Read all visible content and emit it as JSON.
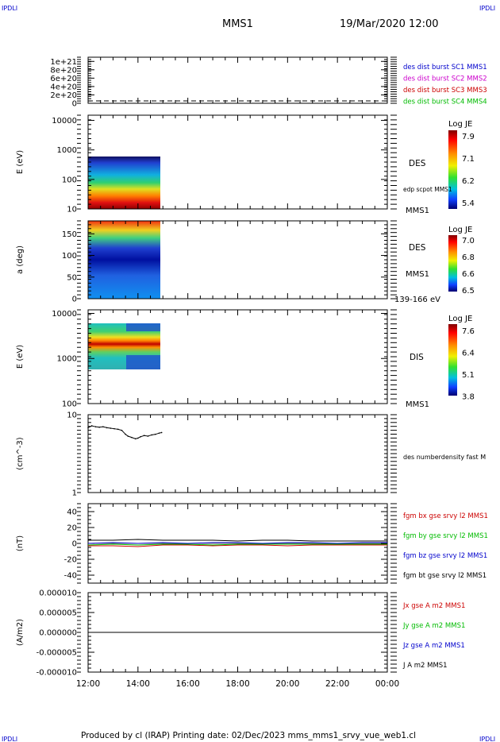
{
  "header": {
    "corner_tl": "IPDLI",
    "corner_tr": "IPDLI",
    "corner_bl": "IPDLI",
    "corner_br": "IPDLI",
    "title": "MMS1",
    "date": "19/Mar/2020 12:00"
  },
  "footer": {
    "text": "Produced by cl (IRAP)   Printing date: 02/Dec/2023   mms_mms1_srvy_vue_web1.cl"
  },
  "colors": {
    "blue": "#0000cc",
    "magenta": "#cc00cc",
    "red": "#cc0000",
    "green": "#00bb00",
    "black": "#000000"
  },
  "chart_data": [
    {
      "type": "line",
      "panel": "distribution counts",
      "ylabel": "",
      "ylim": [
        0,
        1.1e+21
      ],
      "ytick_labels": [
        "0",
        "2e+20",
        "4e+20",
        "6e+20",
        "8e+20",
        "1e+21"
      ],
      "legend": [
        "des dist burst SC1 MMS1",
        "des dist burst SC2 MMS2",
        "des dist burst SC3 MMS3",
        "des dist burst SC4 MMS4"
      ],
      "legend_colors": [
        "#0000cc",
        "#cc00cc",
        "#cc0000",
        "#00bb00"
      ],
      "note": "dashed zero line"
    },
    {
      "type": "heatmap",
      "panel": "DES energy spectrogram",
      "ylabel": "E (eV)",
      "yscale": "log",
      "ylim": [
        10,
        15000
      ],
      "ytick_labels": [
        "10",
        "100",
        "1000",
        "10000"
      ],
      "data_x_range": [
        "12:00",
        "14:50"
      ],
      "data_y_range_eV": [
        10,
        1000
      ],
      "colorbar_title": "Log JE",
      "colorbar_ticks": [
        "7.9",
        "7.1",
        "6.2",
        "5.4"
      ],
      "right_label": "DES",
      "right_sublabel": "edp scpot MMS1",
      "bottom_right": "MMS1"
    },
    {
      "type": "heatmap",
      "panel": "DES pitch angle",
      "ylabel": "a (deg)",
      "ylim": [
        0,
        180
      ],
      "ytick_labels": [
        "0",
        "50",
        "100",
        "150"
      ],
      "colorbar_title": "Log JE",
      "colorbar_ticks": [
        "7.0",
        "6.8",
        "6.6",
        "6.5"
      ],
      "right_label": "DES",
      "right_sublabel": "MMS1",
      "bottom_right": "139-166 eV"
    },
    {
      "type": "heatmap",
      "panel": "DIS energy spectrogram",
      "ylabel": "E (eV)",
      "yscale": "log",
      "ylim": [
        100,
        12000
      ],
      "ytick_labels": [
        "100",
        "1000",
        "10000"
      ],
      "colorbar_title": "Log JE",
      "colorbar_ticks": [
        "7.6",
        "6.4",
        "5.1",
        "3.8"
      ],
      "right_label": "DIS",
      "bottom_right": "MMS1"
    },
    {
      "type": "line",
      "panel": "density",
      "ylabel": "(cm^-3)",
      "yscale": "log",
      "ylim": [
        1,
        10
      ],
      "ytick_labels": [
        "1",
        "10"
      ],
      "legend": [
        "des numberdensity fast M"
      ],
      "series": [
        {
          "x_hours": [
            12.0,
            12.15,
            12.3,
            12.45,
            12.6,
            12.75,
            12.9,
            13.05,
            13.2,
            13.35,
            13.5,
            13.6,
            13.75,
            13.9,
            14.0,
            14.1,
            14.25,
            14.4,
            14.55,
            14.7,
            14.85,
            14.95
          ],
          "values": [
            6.8,
            7.2,
            7.0,
            6.9,
            7.0,
            6.8,
            6.7,
            6.6,
            6.5,
            6.3,
            5.6,
            5.3,
            5.1,
            4.9,
            5.0,
            5.2,
            5.4,
            5.3,
            5.5,
            5.6,
            5.8,
            5.9
          ]
        }
      ]
    },
    {
      "type": "line",
      "panel": "magnetic field",
      "ylabel": "(nT)",
      "ylim": [
        -50,
        50
      ],
      "ytick_labels": [
        "-40",
        "-20",
        "0",
        "20",
        "40"
      ],
      "legend": [
        "fgm bx gse srvy l2 MMS1",
        "fgm by gse srvy l2 MMS1",
        "fgm bz gse srvy l2 MMS1",
        "fgm bt gse srvy l2 MMS1"
      ],
      "legend_colors": [
        "#cc0000",
        "#00bb00",
        "#0000cc",
        "#000000"
      ],
      "x_hours": [
        12,
        13,
        14,
        15,
        16,
        17,
        18,
        19,
        20,
        21,
        22,
        23,
        24
      ],
      "series": [
        {
          "name": "fgm bx gse srvy l2 MMS1",
          "values": [
            -3,
            -3,
            -4,
            -2,
            -2,
            -3,
            -2,
            -2,
            -3,
            -2,
            -2,
            -2,
            -2
          ]
        },
        {
          "name": "fgm by gse srvy l2 MMS1",
          "values": [
            -2,
            -1,
            -2,
            -1,
            -1,
            -2,
            -1,
            -1,
            -1,
            -1,
            -1,
            -1,
            -1
          ]
        },
        {
          "name": "fgm bz gse srvy l2 MMS1",
          "values": [
            0,
            1,
            0,
            1,
            0,
            1,
            1,
            0,
            1,
            1,
            0,
            1,
            1
          ]
        },
        {
          "name": "fgm bt gse srvy l2 MMS1",
          "values": [
            4,
            4,
            5,
            4,
            4,
            4,
            3,
            4,
            4,
            3,
            3,
            3,
            3
          ]
        }
      ]
    },
    {
      "type": "line",
      "panel": "current density",
      "ylabel": "(A/m2)",
      "ylim": [
        -1e-05,
        1e-05
      ],
      "ytick_labels": [
        "-0.000010",
        "-0.000005",
        "0.000000",
        "0.000005",
        "0.000010"
      ],
      "legend": [
        "Jx gse A m2 MMS1",
        "Jy gse A m2 MMS1",
        "Jz gse A m2 MMS1",
        "J A m2 MMS1"
      ],
      "legend_colors": [
        "#cc0000",
        "#00bb00",
        "#0000cc",
        "#000000"
      ],
      "x_hours": [
        12,
        24
      ],
      "series": [
        {
          "name": "J A m2 MMS1",
          "values": [
            0,
            0
          ]
        }
      ]
    }
  ],
  "xaxis": {
    "tick_labels": [
      "12:00",
      "14:00",
      "16:00",
      "18:00",
      "20:00",
      "22:00",
      "00:00"
    ]
  }
}
